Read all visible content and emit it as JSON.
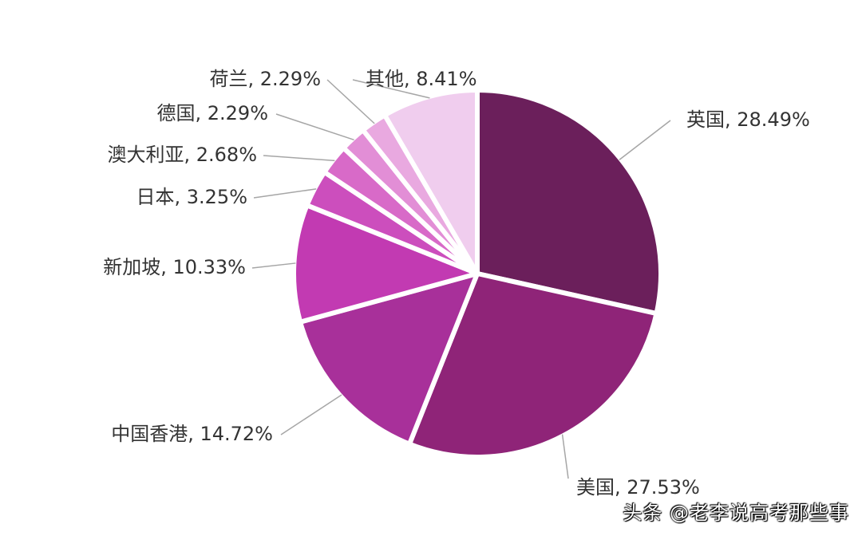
{
  "chart_data": {
    "type": "pie",
    "title": "",
    "start_angle_deg": 0,
    "direction": "clockwise",
    "slices": [
      {
        "name": "英国",
        "value": 28.49,
        "label": "英国, 28.49%",
        "color": "#6b1f5b"
      },
      {
        "name": "美国",
        "value": 27.53,
        "label": "美国, 27.53%",
        "color": "#8f2478"
      },
      {
        "name": "中国香港",
        "value": 14.72,
        "label": "中国香港, 14.72%",
        "color": "#a8309a"
      },
      {
        "name": "新加坡",
        "value": 10.33,
        "label": "新加坡, 10.33%",
        "color": "#c23ab2"
      },
      {
        "name": "日本",
        "value": 3.25,
        "label": "日本, 3.25%",
        "color": "#cc4ebd"
      },
      {
        "name": "澳大利亚",
        "value": 2.68,
        "label": "澳大利亚, 2.68%",
        "color": "#d86ac8"
      },
      {
        "name": "德国",
        "value": 2.29,
        "label": "德国, 2.29%",
        "color": "#e28ed6"
      },
      {
        "name": "荷兰",
        "value": 2.29,
        "label": "荷兰, 2.29%",
        "color": "#e9a9e0"
      },
      {
        "name": "其他",
        "value": 8.41,
        "label": "其他, 8.41%",
        "color": "#f0cdee"
      }
    ]
  },
  "watermark": "头条 @老李说高考那些事"
}
